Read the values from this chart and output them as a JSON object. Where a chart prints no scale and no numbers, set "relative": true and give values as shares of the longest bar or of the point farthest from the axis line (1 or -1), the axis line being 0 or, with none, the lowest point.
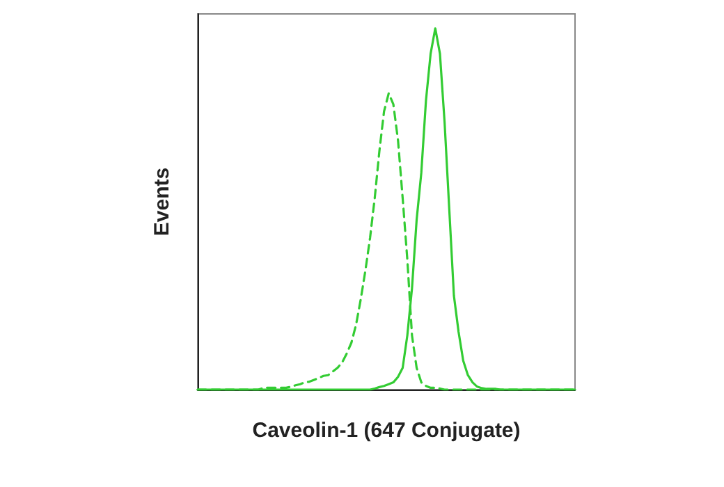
{
  "chart_data": {
    "type": "line",
    "relative": true,
    "xlabel": "Caveolin-1 (647 Conjugate)",
    "ylabel": "Events",
    "marker": "none",
    "categories": [
      null,
      null,
      null,
      null,
      null,
      null,
      null,
      null,
      null,
      null,
      null,
      null,
      null,
      null,
      null,
      null,
      null,
      null,
      null,
      null,
      null,
      null,
      null,
      null,
      null,
      null,
      null,
      null,
      null,
      null,
      null,
      null,
      null,
      null,
      null,
      null,
      null,
      null,
      null,
      null,
      null,
      null,
      null,
      null,
      null,
      null,
      null,
      null,
      null,
      null,
      null,
      null,
      null,
      null,
      null,
      null,
      null,
      null,
      null,
      null,
      null,
      null,
      null,
      null,
      null,
      null,
      null,
      null,
      null,
      null,
      null,
      null,
      null,
      null,
      null,
      null,
      null,
      null,
      null,
      null,
      null,
      null
    ],
    "series": [
      {
        "color": "#33cc33",
        "line_style": "dashed",
        "values": [
          0,
          0,
          0,
          0,
          0,
          0,
          0,
          0,
          0,
          0,
          0,
          0,
          0,
          0,
          0.004,
          0.005,
          0.005,
          0.005,
          0.005,
          0.005,
          0.008,
          0.012,
          0.015,
          0.02,
          0.022,
          0.027,
          0.032,
          0.038,
          0.04,
          0.05,
          0.06,
          0.075,
          0.1,
          0.13,
          0.18,
          0.25,
          0.33,
          0.42,
          0.53,
          0.66,
          0.77,
          0.82,
          0.79,
          0.69,
          0.53,
          0.36,
          0.15,
          0.06,
          0.02,
          0.01,
          0.005,
          0.005,
          0.003,
          0,
          0,
          0,
          0,
          0,
          0,
          0,
          0,
          0,
          0,
          0,
          0,
          0,
          0,
          0,
          0,
          0,
          0,
          0,
          0,
          0,
          0,
          0,
          0,
          0,
          0,
          0,
          0,
          0
        ]
      },
      {
        "color": "#33cc33",
        "line_style": "solid",
        "values": [
          0,
          0,
          0,
          0,
          0,
          0,
          0,
          0,
          0,
          0,
          0,
          0,
          0,
          0,
          0,
          0,
          0,
          0,
          0,
          0,
          0,
          0,
          0,
          0,
          0,
          0,
          0,
          0,
          0,
          0,
          0,
          0,
          0,
          0,
          0,
          0,
          0,
          0,
          0.003,
          0.007,
          0.01,
          0.015,
          0.02,
          0.035,
          0.06,
          0.15,
          0.28,
          0.47,
          0.6,
          0.8,
          0.93,
          1,
          0.93,
          0.74,
          0.5,
          0.26,
          0.16,
          0.08,
          0.04,
          0.02,
          0.008,
          0.004,
          0.002,
          0.002,
          0.002,
          0,
          0,
          0,
          0,
          0,
          0,
          0,
          0,
          0,
          0,
          0,
          0,
          0,
          0,
          0,
          0,
          0
        ]
      }
    ]
  }
}
